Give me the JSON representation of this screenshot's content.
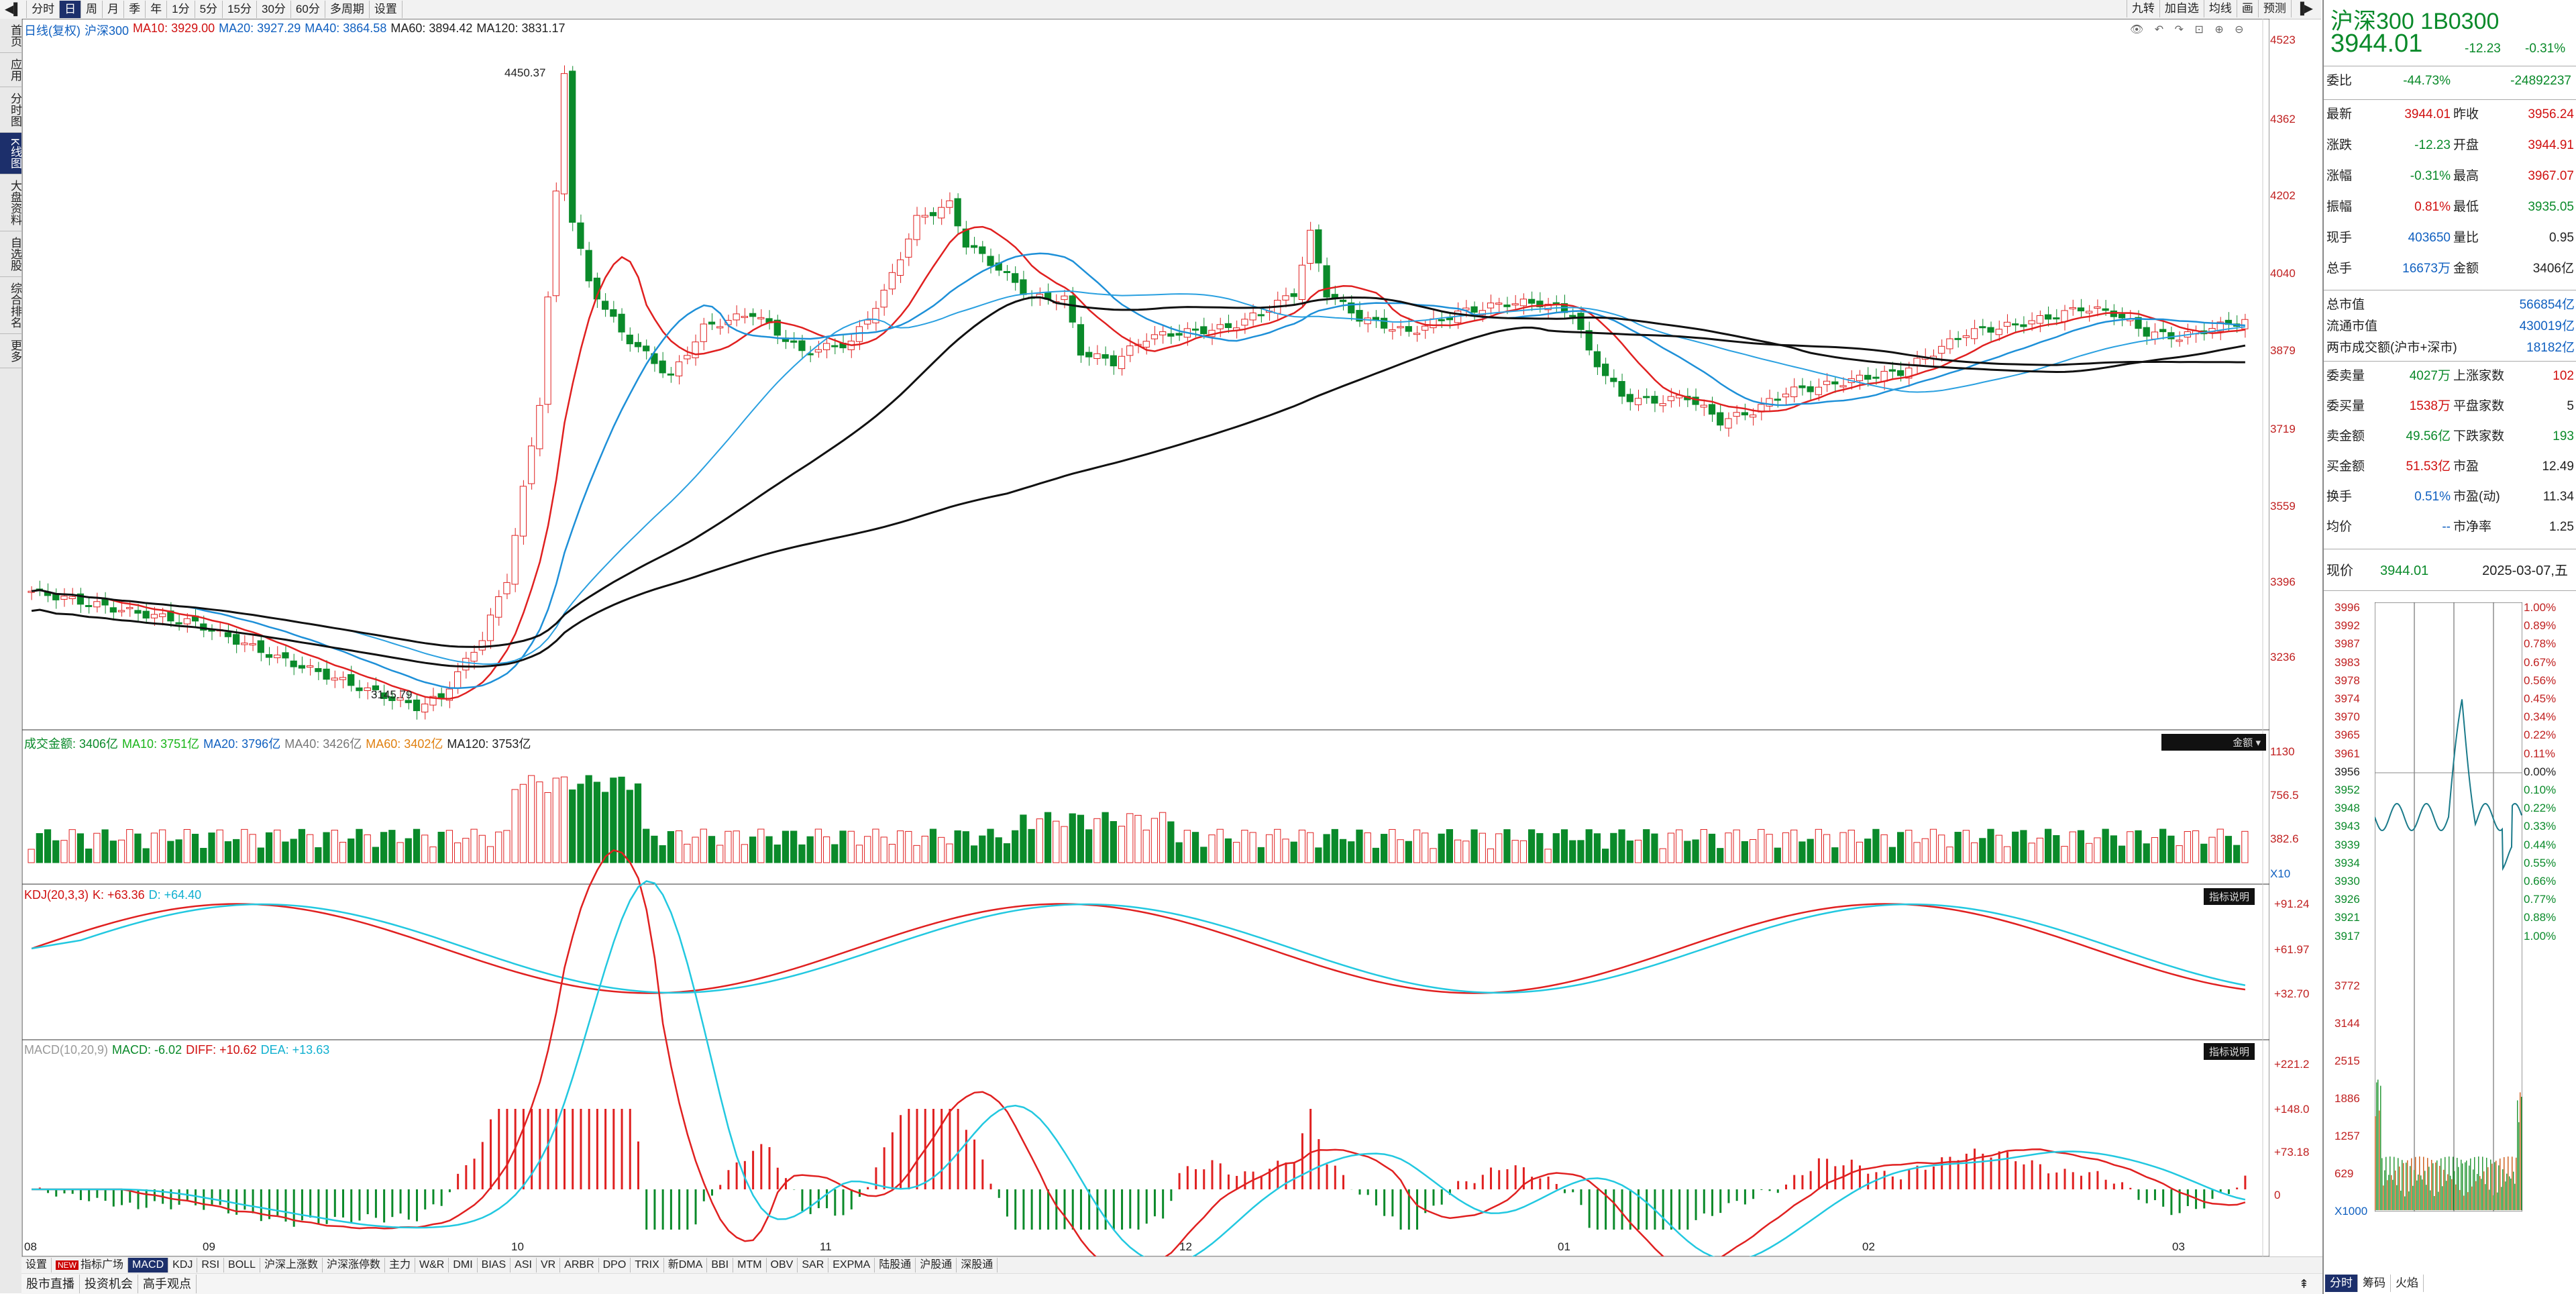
{
  "top_tabs": [
    "分时",
    "日",
    "周",
    "月",
    "季",
    "年",
    "1分",
    "5分",
    "15分",
    "30分",
    "60分",
    "多周期",
    "设置"
  ],
  "top_right_tabs": [
    "九转",
    "加自选",
    "均线",
    "画",
    "预测"
  ],
  "left_rail": [
    "首页",
    "应用",
    "分时图",
    "K线图",
    "大盘资料",
    "自选股",
    "综合排名",
    "更多"
  ],
  "main_legend": {
    "prefix": "日线(复权)",
    "name": "沪深300",
    "ma10": "MA10: 3929.00",
    "ma20": "MA20: 3927.29",
    "ma40": "MA40: 3864.58",
    "ma60": "MA60: 3894.42",
    "ma120": "MA120: 3831.17"
  },
  "price_axis": [
    "4523",
    "4362",
    "4202",
    "4040",
    "3879",
    "3719",
    "3559",
    "3396",
    "3236"
  ],
  "high_label": "4450.37",
  "low_label": "3145.79",
  "volume_legend": {
    "label": "成交金额: 3406亿",
    "ma10": "MA10: 3751亿",
    "ma20": "MA20: 3796亿",
    "ma40": "MA40: 3426亿",
    "ma60": "MA60: 3402亿",
    "ma120": "MA120: 3753亿"
  },
  "volume_axis": [
    "1130",
    "756.5",
    "382.6",
    "X10"
  ],
  "volume_tag": "金额",
  "kdj_legend": {
    "label": "KDJ(20,3,3)",
    "k": "K: +63.36",
    "d": "D: +64.40"
  },
  "kdj_axis": [
    "+91.24",
    "+61.97",
    "+32.70"
  ],
  "kdj_tag": "指标说明",
  "macd_legend": {
    "label": "MACD(10,20,9)",
    "macd": "MACD: -6.02",
    "diff": "DIFF: +10.62",
    "dea": "DEA: +13.63"
  },
  "macd_axis": [
    "+221.2",
    "+148.0",
    "+73.18",
    "0"
  ],
  "macd_tag": "指标说明",
  "x_labels": [
    "08",
    "09",
    "10",
    "11",
    "12",
    "01",
    "02",
    "03"
  ],
  "bottom_tabs": [
    "设置",
    "指标广场",
    "MACD",
    "KDJ",
    "RSI",
    "BOLL",
    "沪深上涨数",
    "沪深涨停数",
    "主力",
    "W&R",
    "DMI",
    "BIAS",
    "ASI",
    "VR",
    "ARBR",
    "DPO",
    "TRIX",
    "新DMA",
    "BBI",
    "MTM",
    "OBV",
    "SAR",
    "EXPMA",
    "陆股通",
    "沪股通",
    "深股通"
  ],
  "bottom_tabs2": [
    "股市直播",
    "投资机会",
    "高手观点"
  ],
  "quote": {
    "title": "沪深300 1B0300",
    "price": "3944.01",
    "change": "-12.23",
    "pct": "-0.31%",
    "weibi_label": "委比",
    "weibi": "-44.73%",
    "weicha": "-24892237",
    "rows": [
      [
        "最新",
        "3944.01",
        "昨收",
        "3956.24"
      ],
      [
        "涨跌",
        "-12.23",
        "开盘",
        "3944.91"
      ],
      [
        "涨幅",
        "-0.31%",
        "最高",
        "3967.07"
      ],
      [
        "振幅",
        "0.81%",
        "最低",
        "3935.05"
      ],
      [
        "现手",
        "403650",
        "量比",
        "0.95"
      ],
      [
        "总手",
        "16673万",
        "金额",
        "3406亿"
      ]
    ],
    "mkt": [
      [
        "总市值",
        "566854亿"
      ],
      [
        "流通市值",
        "430019亿"
      ],
      [
        "两市成交额(沪市+深市)",
        "18182亿"
      ]
    ],
    "rows2": [
      [
        "委卖量",
        "4027万",
        "上涨家数",
        "102"
      ],
      [
        "委买量",
        "1538万",
        "平盘家数",
        "5"
      ],
      [
        "卖金额",
        "49.56亿",
        "下跌家数",
        "193"
      ],
      [
        "买金额",
        "51.53亿",
        "市盈",
        "12.49"
      ],
      [
        "换手",
        "0.51%",
        "市盈(动)",
        "11.34"
      ],
      [
        "均价",
        "--",
        "市净率",
        "1.25"
      ]
    ],
    "now_label": "现价",
    "now_price": "3944.01",
    "date": "2025-03-07,五"
  },
  "mini_axis_left": [
    "3996",
    "3992",
    "3987",
    "3983",
    "3978",
    "3974",
    "3970",
    "3965",
    "3961",
    "3956",
    "3952",
    "3948",
    "3943",
    "3939",
    "3934",
    "3930",
    "3926",
    "3921",
    "3917",
    "3772",
    "3144",
    "2515",
    "1886",
    "1257",
    "629",
    "X1000"
  ],
  "mini_axis_right": [
    "1.00%",
    "0.89%",
    "0.78%",
    "0.67%",
    "0.56%",
    "0.45%",
    "0.34%",
    "0.22%",
    "0.11%",
    "0.00%",
    "0.10%",
    "0.22%",
    "0.33%",
    "0.44%",
    "0.55%",
    "0.66%",
    "0.77%",
    "0.88%",
    "1.00%"
  ],
  "mini_tabs": [
    "分时",
    "筹码",
    "火焰"
  ],
  "colors": {
    "up": "#e02020",
    "down": "#0a8a2a",
    "ma10": "#e02020",
    "ma20": "#1e90d8",
    "ma60": "#111111",
    "navy": "#1c2f6b"
  }
}
